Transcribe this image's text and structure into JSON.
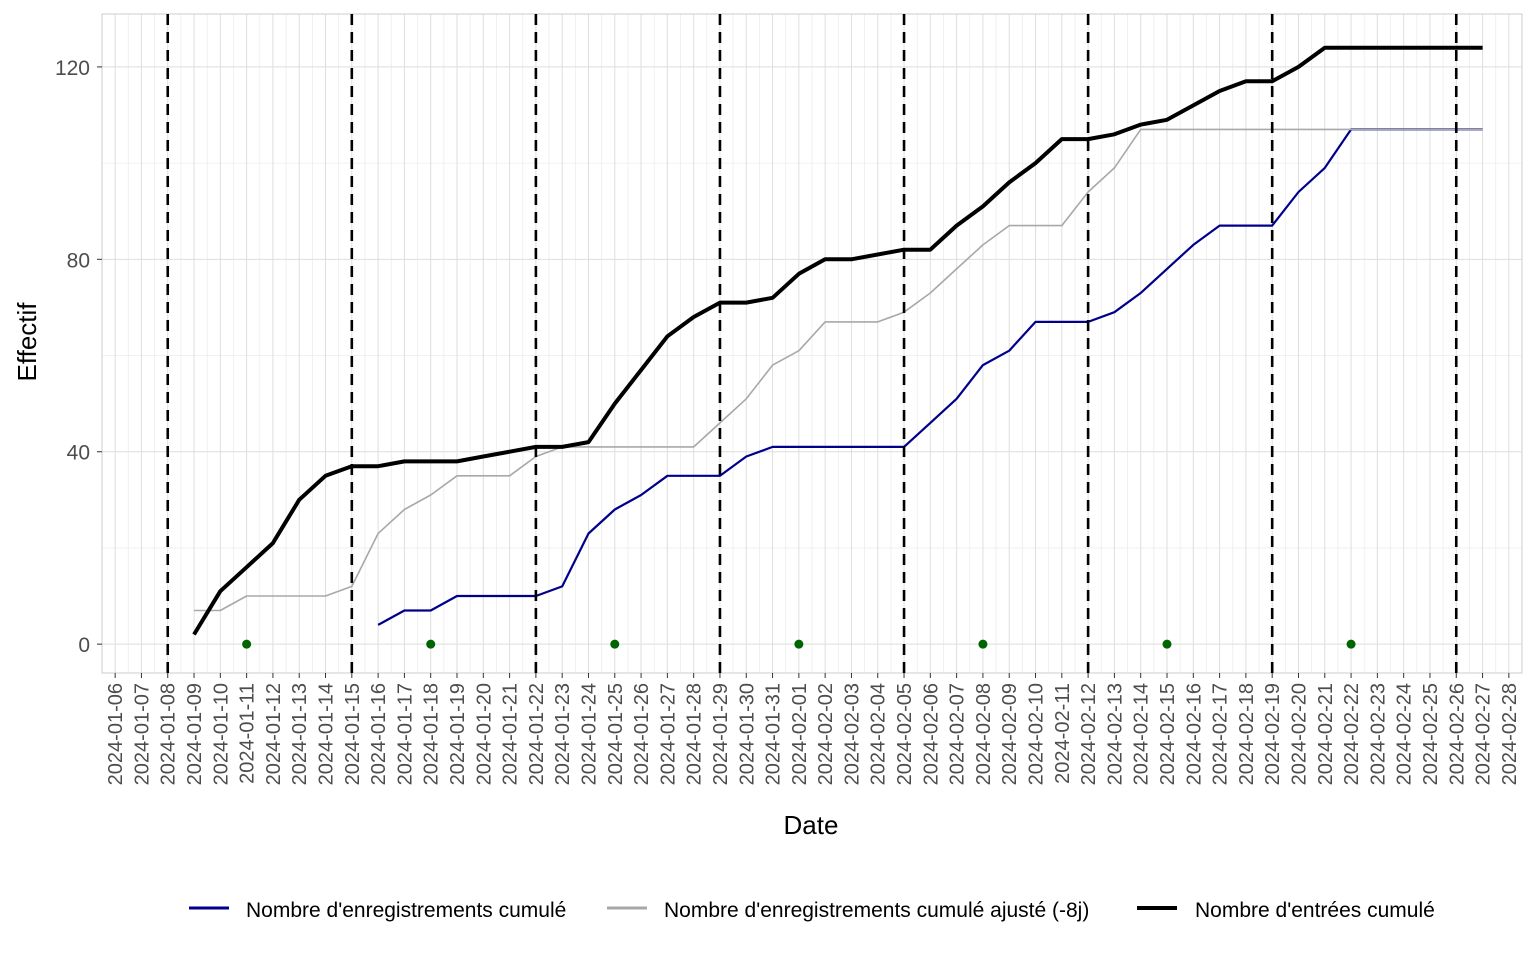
{
  "chart_data": {
    "type": "line",
    "xlabel": "Date",
    "ylabel": "Effectif",
    "x_start": "2024-01-06",
    "x_end": "2024-02-28",
    "xlim": [
      "2024-01-06",
      "2024-02-28"
    ],
    "ylim": [
      -6,
      131
    ],
    "yticks": [
      0,
      40,
      80,
      120
    ],
    "x_tick_labels": [
      "2024-01-06",
      "2024-01-07",
      "2024-01-08",
      "2024-01-09",
      "2024-01-10",
      "2024-01-11",
      "2024-01-12",
      "2024-01-13",
      "2024-01-14",
      "2024-01-15",
      "2024-01-16",
      "2024-01-17",
      "2024-01-18",
      "2024-01-19",
      "2024-01-20",
      "2024-01-21",
      "2024-01-22",
      "2024-01-23",
      "2024-01-24",
      "2024-01-25",
      "2024-01-26",
      "2024-01-27",
      "2024-01-28",
      "2024-01-29",
      "2024-01-30",
      "2024-01-31",
      "2024-02-01",
      "2024-02-02",
      "2024-02-03",
      "2024-02-04",
      "2024-02-05",
      "2024-02-06",
      "2024-02-07",
      "2024-02-08",
      "2024-02-09",
      "2024-02-10",
      "2024-02-11",
      "2024-02-12",
      "2024-02-13",
      "2024-02-14",
      "2024-02-15",
      "2024-02-16",
      "2024-02-17",
      "2024-02-18",
      "2024-02-19",
      "2024-02-20",
      "2024-02-21",
      "2024-02-22",
      "2024-02-23",
      "2024-02-24",
      "2024-02-25",
      "2024-02-26",
      "2024-02-27",
      "2024-02-28"
    ],
    "grid": true,
    "legend_position": "bottom",
    "vlines": [
      "2024-01-08",
      "2024-01-15",
      "2024-01-22",
      "2024-01-29",
      "2024-02-05",
      "2024-02-12",
      "2024-02-19",
      "2024-02-26"
    ],
    "points": {
      "color": "#006400",
      "x": [
        "2024-01-11",
        "2024-01-18",
        "2024-01-25",
        "2024-02-01",
        "2024-02-08",
        "2024-02-15",
        "2024-02-22"
      ],
      "y": [
        0,
        0,
        0,
        0,
        0,
        0,
        0
      ]
    },
    "series": [
      {
        "name": "Nombre d'enregistrements cumulé",
        "color": "#00008B",
        "width": 2.2,
        "x": [
          "2024-01-16",
          "2024-01-17",
          "2024-01-18",
          "2024-01-19",
          "2024-01-20",
          "2024-01-21",
          "2024-01-22",
          "2024-01-23",
          "2024-01-24",
          "2024-01-25",
          "2024-01-26",
          "2024-01-27",
          "2024-01-28",
          "2024-01-29",
          "2024-01-30",
          "2024-01-31",
          "2024-02-01",
          "2024-02-02",
          "2024-02-03",
          "2024-02-04",
          "2024-02-05",
          "2024-02-06",
          "2024-02-07",
          "2024-02-08",
          "2024-02-09",
          "2024-02-10",
          "2024-02-11",
          "2024-02-12",
          "2024-02-13",
          "2024-02-14",
          "2024-02-15",
          "2024-02-16",
          "2024-02-17",
          "2024-02-18",
          "2024-02-19",
          "2024-02-20",
          "2024-02-21",
          "2024-02-22",
          "2024-02-23",
          "2024-02-24",
          "2024-02-25",
          "2024-02-26",
          "2024-02-27"
        ],
        "values": [
          4,
          7,
          7,
          10,
          10,
          10,
          10,
          12,
          23,
          28,
          31,
          35,
          35,
          35,
          39,
          41,
          41,
          41,
          41,
          41,
          41,
          46,
          51,
          58,
          61,
          67,
          67,
          67,
          69,
          73,
          78,
          83,
          87,
          87,
          87,
          94,
          99,
          107,
          107,
          107,
          107,
          107,
          107
        ]
      },
      {
        "name": "Nombre d'enregistrements cumulé ajusté (-8j)",
        "color": "#A8A8A8",
        "width": 1.6,
        "x": [
          "2024-01-09",
          "2024-01-10",
          "2024-01-11",
          "2024-01-12",
          "2024-01-13",
          "2024-01-14",
          "2024-01-15",
          "2024-01-16",
          "2024-01-17",
          "2024-01-18",
          "2024-01-19",
          "2024-01-20",
          "2024-01-21",
          "2024-01-22",
          "2024-01-23",
          "2024-01-24",
          "2024-01-25",
          "2024-01-26",
          "2024-01-27",
          "2024-01-28",
          "2024-01-29",
          "2024-01-30",
          "2024-01-31",
          "2024-02-01",
          "2024-02-02",
          "2024-02-03",
          "2024-02-04",
          "2024-02-05",
          "2024-02-06",
          "2024-02-07",
          "2024-02-08",
          "2024-02-09",
          "2024-02-10",
          "2024-02-11",
          "2024-02-12",
          "2024-02-13",
          "2024-02-14",
          "2024-02-15",
          "2024-02-16",
          "2024-02-17",
          "2024-02-18",
          "2024-02-19",
          "2024-02-20",
          "2024-02-21",
          "2024-02-22",
          "2024-02-23",
          "2024-02-24",
          "2024-02-25",
          "2024-02-26",
          "2024-02-27"
        ],
        "values": [
          7,
          7,
          10,
          10,
          10,
          10,
          12,
          23,
          28,
          31,
          35,
          35,
          35,
          39,
          41,
          41,
          41,
          41,
          41,
          41,
          46,
          51,
          58,
          61,
          67,
          67,
          67,
          69,
          73,
          78,
          83,
          87,
          87,
          87,
          94,
          99,
          107,
          107,
          107,
          107,
          107,
          107,
          107,
          107,
          107,
          107,
          107,
          107,
          107,
          107
        ]
      },
      {
        "name": "Nombre d'entrées cumulé",
        "color": "#000000",
        "width": 4,
        "x": [
          "2024-01-09",
          "2024-01-10",
          "2024-01-11",
          "2024-01-12",
          "2024-01-13",
          "2024-01-14",
          "2024-01-15",
          "2024-01-16",
          "2024-01-17",
          "2024-01-18",
          "2024-01-19",
          "2024-01-20",
          "2024-01-21",
          "2024-01-22",
          "2024-01-23",
          "2024-01-24",
          "2024-01-25",
          "2024-01-26",
          "2024-01-27",
          "2024-01-28",
          "2024-01-29",
          "2024-01-30",
          "2024-01-31",
          "2024-02-01",
          "2024-02-02",
          "2024-02-03",
          "2024-02-04",
          "2024-02-05",
          "2024-02-06",
          "2024-02-07",
          "2024-02-08",
          "2024-02-09",
          "2024-02-10",
          "2024-02-11",
          "2024-02-12",
          "2024-02-13",
          "2024-02-14",
          "2024-02-15",
          "2024-02-16",
          "2024-02-17",
          "2024-02-18",
          "2024-02-19",
          "2024-02-20",
          "2024-02-21",
          "2024-02-22",
          "2024-02-23",
          "2024-02-24",
          "2024-02-25",
          "2024-02-26",
          "2024-02-27"
        ],
        "values": [
          2,
          11,
          16,
          21,
          30,
          35,
          37,
          37,
          38,
          38,
          38,
          39,
          40,
          41,
          41,
          42,
          50,
          57,
          64,
          68,
          71,
          71,
          72,
          77,
          80,
          80,
          81,
          82,
          82,
          87,
          91,
          96,
          100,
          105,
          105,
          106,
          108,
          109,
          112,
          115,
          117,
          117,
          120,
          124,
          124,
          124,
          124,
          124,
          124,
          124
        ]
      }
    ]
  }
}
